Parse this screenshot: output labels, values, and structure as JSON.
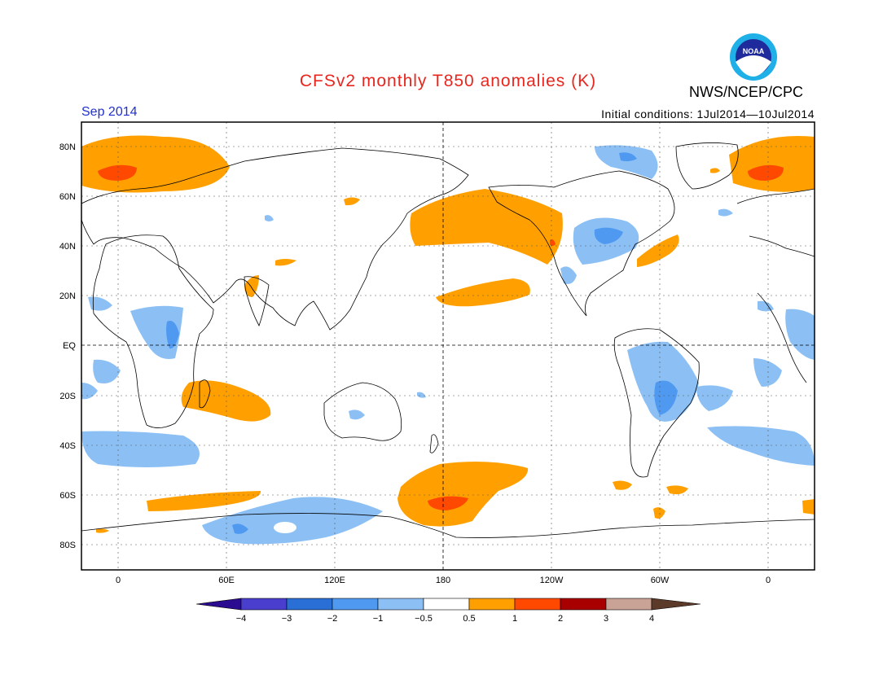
{
  "title": "CFSv2 monthly T850 anomalies (K)",
  "agency": "NWS/NCEP/CPC",
  "logo_text": "NOAA",
  "period": "Sep 2014",
  "initial_conditions": "Initial conditions: 1Jul2014—10Jul2014",
  "lat_labels": [
    "80N",
    "60N",
    "40N",
    "20N",
    "EQ",
    "20S",
    "40S",
    "60S",
    "80S"
  ],
  "lon_labels": [
    "0",
    "60E",
    "120E",
    "180",
    "120W",
    "60W",
    "0"
  ],
  "colorbar": {
    "tick_labels": [
      "−4",
      "−3",
      "−2",
      "−1",
      "−0.5",
      "0.5",
      "1",
      "2",
      "3",
      "4"
    ],
    "colors": [
      "#2b0b90",
      "#4a3ecf",
      "#2a6fd6",
      "#4f9af0",
      "#8cc0f5",
      "#ffffff",
      "#ffa000",
      "#ff4800",
      "#a80000",
      "#c9a395",
      "#5c3a2a"
    ]
  },
  "colors": {
    "title": "#e8261e",
    "period": "#2030d0",
    "warm_weak": "#ffa000",
    "warm_mid": "#ff4800",
    "cool_weak": "#8cc0f5",
    "cool_mid": "#4f9af0"
  }
}
